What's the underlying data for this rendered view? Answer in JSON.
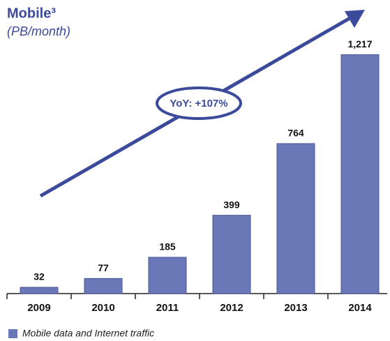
{
  "chart_data": {
    "type": "bar",
    "title": "Mobile³",
    "subtitle": "(PB/month)",
    "categories": [
      "2009",
      "2010",
      "2011",
      "2012",
      "2013",
      "2014"
    ],
    "values": [
      32,
      77,
      185,
      399,
      764,
      1217
    ],
    "value_labels": [
      "32",
      "77",
      "185",
      "399",
      "764",
      "1,217"
    ],
    "color": "#6b78b8",
    "ylim": [
      0,
      1300
    ],
    "annotation": "YoY: +107%",
    "legend": "Mobile data and Internet traffic"
  }
}
